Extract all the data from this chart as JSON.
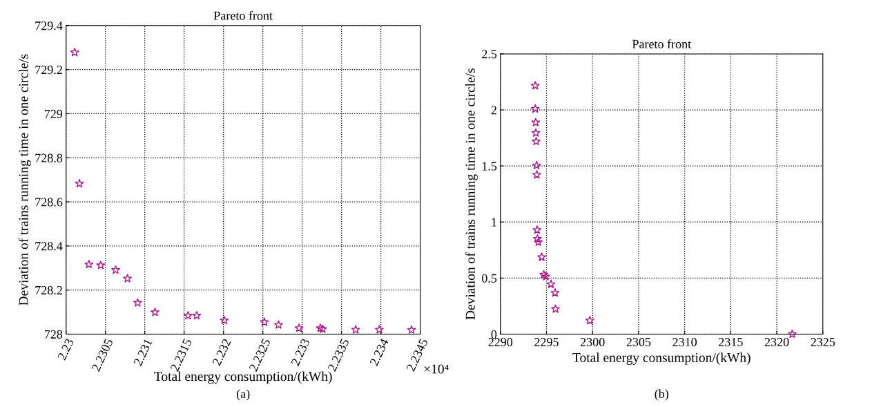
{
  "chart_data": [
    {
      "type": "scatter",
      "title": "Pareto front",
      "xlabel": "Total energy consumption/(kWh)",
      "ylabel": "Deviation of trains running time in one circle/s",
      "annotations": [
        "×10⁴",
        "(a)"
      ],
      "series": [
        {
          "color": "#b0128c",
          "x": [
            2.23011,
            2.23017,
            2.23029,
            2.23044,
            2.23063,
            2.23078,
            2.23091,
            2.23113,
            2.23155,
            2.23166,
            2.23201,
            2.23252,
            2.2327,
            2.23296,
            2.23323,
            2.23326,
            2.23368,
            2.23398,
            2.23439
          ],
          "values": [
            729.278,
            728.683,
            728.316,
            728.312,
            728.291,
            728.252,
            728.142,
            728.099,
            728.084,
            728.084,
            728.062,
            728.054,
            728.042,
            728.027,
            728.027,
            728.023,
            728.02,
            728.02,
            728.019
          ]
        }
      ],
      "xlim": [
        2.23,
        2.2345
      ],
      "xticks": [
        2.23,
        2.2305,
        2.231,
        2.2315,
        2.232,
        2.2325,
        2.233,
        2.2335,
        2.234,
        2.2345
      ],
      "ylim": [
        728,
        729.4
      ],
      "yticks": [
        728,
        728.2,
        728.4,
        728.6,
        728.8,
        729,
        729.2,
        729.4
      ],
      "grid": true,
      "marker": "star",
      "line_style": "dotted"
    },
    {
      "type": "scatter",
      "title": "Pareto front",
      "xlabel": "Total energy consumption/(kWh)",
      "ylabel": "Deviation of trains running time in one circle/s",
      "annotations": [
        "(b)"
      ],
      "series": [
        {
          "color": "#b0128c",
          "x": [
            2293.78,
            2293.78,
            2293.83,
            2293.85,
            2293.88,
            2293.93,
            2293.95,
            2293.98,
            2294.02,
            2294.12,
            2294.49,
            2294.71,
            2294.93,
            2295.49,
            2295.93,
            2295.98,
            2299.71,
            2321.68
          ],
          "values": [
            2.216,
            2.009,
            1.888,
            1.794,
            1.719,
            1.505,
            1.422,
            0.929,
            0.849,
            0.821,
            0.687,
            0.53,
            0.513,
            0.445,
            0.368,
            0.224,
            0.121,
            0.0
          ]
        }
      ],
      "xlim": [
        2290,
        2325
      ],
      "xticks": [
        2290,
        2295,
        2300,
        2305,
        2310,
        2315,
        2320,
        2325
      ],
      "ylim": [
        0,
        2.5
      ],
      "yticks": [
        0,
        0.5,
        1,
        1.5,
        2,
        2.5
      ],
      "grid": true,
      "marker": "star",
      "line_style": "dotted"
    }
  ]
}
